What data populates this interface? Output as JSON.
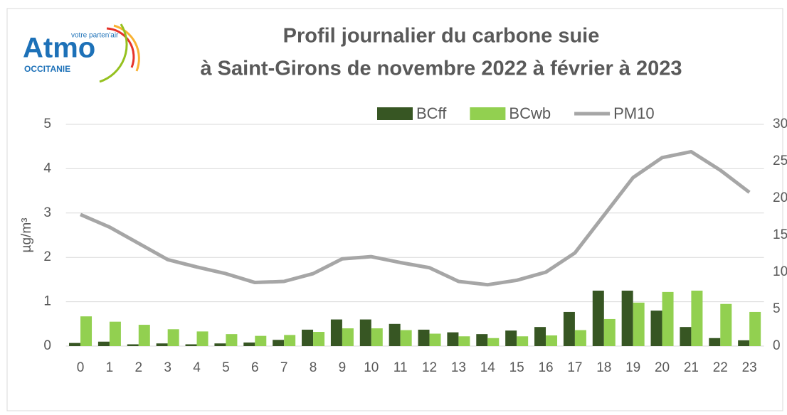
{
  "logo": {
    "name": "Atmo",
    "tagline": "votre parten'air",
    "region": "OCCITANIE"
  },
  "chart_data": {
    "type": "bar",
    "title": [
      "Profil journalier du carbone suie",
      "à Saint-Girons de novembre 2022 à février à 2023"
    ],
    "y_label": "µg/m³",
    "categories": [
      "0",
      "1",
      "2",
      "3",
      "4",
      "5",
      "6",
      "7",
      "8",
      "9",
      "10",
      "11",
      "12",
      "13",
      "14",
      "15",
      "16",
      "17",
      "18",
      "19",
      "20",
      "21",
      "22",
      "23"
    ],
    "series": [
      {
        "name": "BCff",
        "type": "bar",
        "color": "#375623",
        "values": [
          0.07,
          0.1,
          0.04,
          0.06,
          0.04,
          0.06,
          0.08,
          0.14,
          0.37,
          0.6,
          0.6,
          0.5,
          0.37,
          0.31,
          0.27,
          0.35,
          0.43,
          0.77,
          1.25,
          1.25,
          0.8,
          0.43,
          0.18,
          0.13
        ]
      },
      {
        "name": "BCwb",
        "type": "bar",
        "color": "#92d050",
        "values": [
          0.67,
          0.55,
          0.48,
          0.38,
          0.33,
          0.27,
          0.23,
          0.25,
          0.32,
          0.4,
          0.4,
          0.36,
          0.28,
          0.22,
          0.18,
          0.22,
          0.24,
          0.36,
          0.61,
          0.98,
          1.22,
          1.25,
          0.95,
          0.77
        ]
      },
      {
        "name": "PM10",
        "type": "line",
        "axis": "y2",
        "color": "#a6a6a6",
        "values": [
          17.8,
          16.1,
          13.9,
          11.7,
          10.7,
          9.8,
          8.6,
          8.75,
          9.8,
          11.8,
          12.1,
          11.3,
          10.6,
          8.75,
          8.3,
          8.9,
          10,
          12.6,
          17.7,
          22.8,
          25.5,
          26.3,
          23.8,
          20.8
        ]
      }
    ],
    "ylim": [
      0,
      5
    ],
    "yticks": [
      0,
      1,
      2,
      3,
      4,
      5
    ],
    "y2lim": [
      0,
      30
    ],
    "y2ticks": [
      0,
      5,
      10,
      15,
      20,
      25,
      30
    ],
    "grid": true,
    "legend": "top"
  }
}
